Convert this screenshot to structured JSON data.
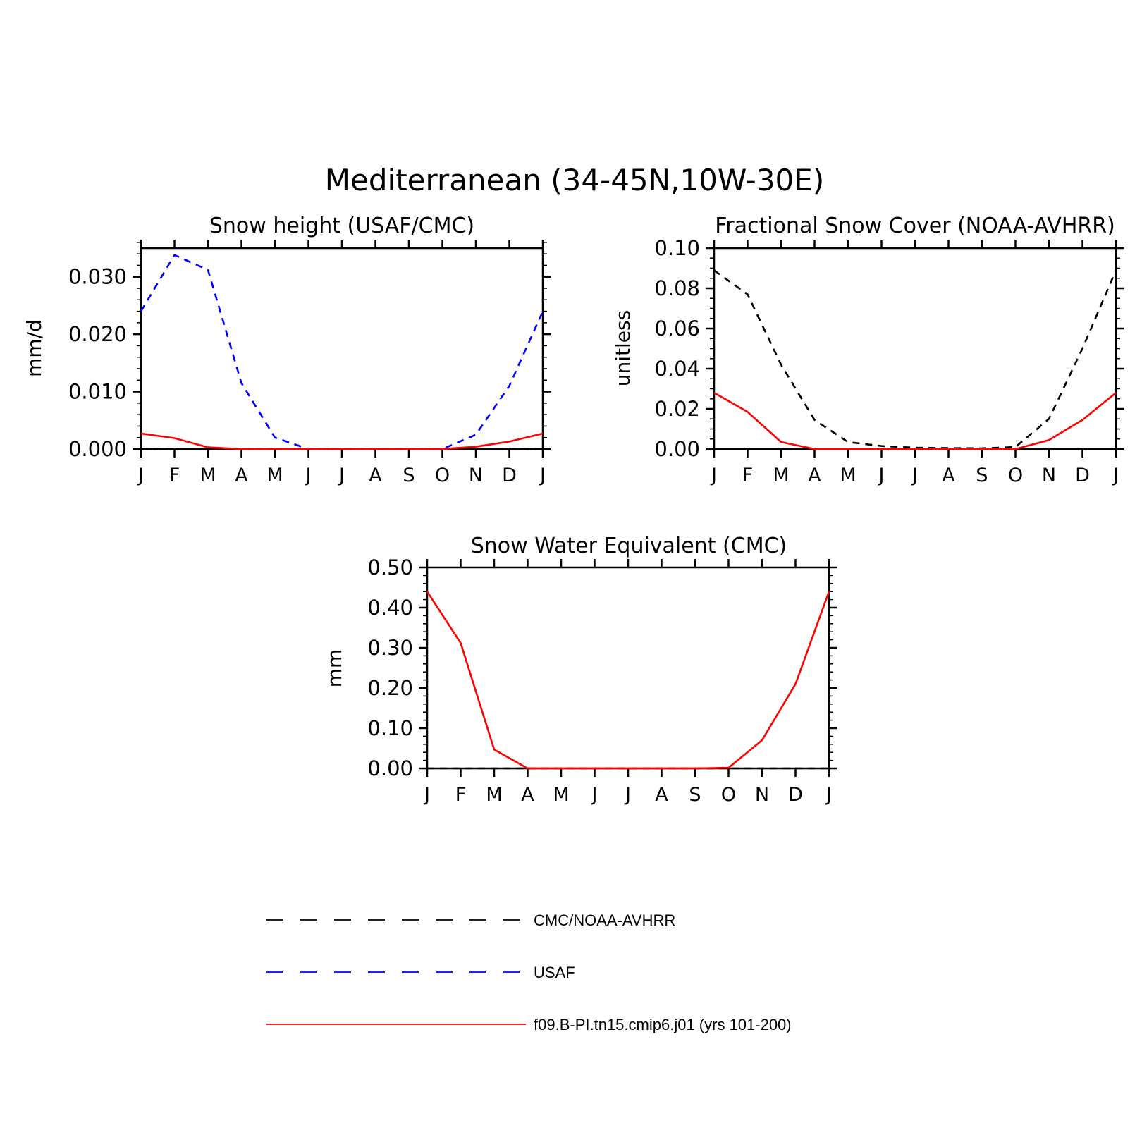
{
  "title": "Mediterranean (34-45N,10W-30E)",
  "month_labels": [
    "J",
    "F",
    "M",
    "A",
    "M",
    "J",
    "J",
    "A",
    "S",
    "O",
    "N",
    "D",
    "J"
  ],
  "colors": {
    "obs": "#000000",
    "usaf": "#0000ff",
    "model": "#ff0000"
  },
  "legend": [
    {
      "label": "CMC/NOAA-AVHRR",
      "color": "#000000",
      "style": "dashed"
    },
    {
      "label": "USAF",
      "color": "#0000ff",
      "style": "dashed"
    },
    {
      "label": "f09.B-PI.tn15.cmip6.j01 (yrs 101-200)",
      "color": "#ff0000",
      "style": "solid"
    }
  ],
  "chart_data": [
    {
      "type": "line",
      "title": "Snow height (USAF/CMC)",
      "ylabel": "mm/d",
      "xlabel": "",
      "x": [
        "J",
        "F",
        "M",
        "A",
        "M",
        "J",
        "J",
        "A",
        "S",
        "O",
        "N",
        "D",
        "J"
      ],
      "ylim": [
        0,
        0.035
      ],
      "yticks": [
        0.0,
        0.01,
        0.02,
        0.03
      ],
      "yticklabels": [
        "0.000",
        "0.010",
        "0.020",
        "0.030"
      ],
      "yminor": 0.002,
      "series": [
        {
          "name": "CMC/NOAA-AVHRR",
          "color": "#000000",
          "style": "dashed",
          "values": [
            0,
            0,
            0,
            0,
            0,
            0,
            0,
            0,
            0,
            0,
            0,
            0,
            0
          ]
        },
        {
          "name": "USAF",
          "color": "#0000ff",
          "style": "dashed",
          "values": [
            0.024,
            0.0338,
            0.0312,
            0.0115,
            0.002,
            0.0,
            0.0,
            0.0,
            0.0,
            0.0,
            0.0025,
            0.011,
            0.024
          ]
        },
        {
          "name": "f09.B-PI.tn15.cmip6.j01 (yrs 101-200)",
          "color": "#ff0000",
          "style": "solid",
          "values": [
            0.0027,
            0.0019,
            0.0003,
            0.0,
            0.0,
            0.0,
            0.0,
            0.0,
            0.0,
            0.0,
            0.0004,
            0.0013,
            0.0027
          ]
        }
      ]
    },
    {
      "type": "line",
      "title": "Fractional Snow Cover (NOAA-AVHRR)",
      "ylabel": "unitless",
      "xlabel": "",
      "x": [
        "J",
        "F",
        "M",
        "A",
        "M",
        "J",
        "J",
        "A",
        "S",
        "O",
        "N",
        "D",
        "J"
      ],
      "ylim": [
        0,
        0.1
      ],
      "yticks": [
        0.0,
        0.02,
        0.04,
        0.06,
        0.08,
        0.1
      ],
      "yticklabels": [
        "0.00",
        "0.02",
        "0.04",
        "0.06",
        "0.08",
        "0.10"
      ],
      "yminor": 0.005,
      "series": [
        {
          "name": "CMC/NOAA-AVHRR",
          "color": "#000000",
          "style": "dashed",
          "values": [
            0.089,
            0.077,
            0.042,
            0.0145,
            0.0035,
            0.0015,
            0.0007,
            0.0005,
            0.0004,
            0.001,
            0.015,
            0.05,
            0.089
          ]
        },
        {
          "name": "f09.B-PI.tn15.cmip6.j01 (yrs 101-200)",
          "color": "#ff0000",
          "style": "solid",
          "values": [
            0.028,
            0.0185,
            0.0035,
            0.0,
            0.0,
            0.0,
            0.0,
            0.0,
            0.0,
            0.0,
            0.0045,
            0.0145,
            0.028
          ]
        }
      ]
    },
    {
      "type": "line",
      "title": "Snow Water Equivalent (CMC)",
      "ylabel": "mm",
      "xlabel": "",
      "x": [
        "J",
        "F",
        "M",
        "A",
        "M",
        "J",
        "J",
        "A",
        "S",
        "O",
        "N",
        "D",
        "J"
      ],
      "ylim": [
        0,
        0.5
      ],
      "yticks": [
        0.0,
        0.1,
        0.2,
        0.3,
        0.4,
        0.5
      ],
      "yticklabels": [
        "0.00",
        "0.10",
        "0.20",
        "0.30",
        "0.40",
        "0.50"
      ],
      "yminor": 0.02,
      "series": [
        {
          "name": "CMC/NOAA-AVHRR",
          "color": "#000000",
          "style": "dashed",
          "values": [
            0,
            0,
            0,
            0,
            0,
            0,
            0,
            0,
            0,
            0,
            0,
            0,
            0
          ]
        },
        {
          "name": "f09.B-PI.tn15.cmip6.j01 (yrs 101-200)",
          "color": "#ff0000",
          "style": "solid",
          "values": [
            0.44,
            0.312,
            0.047,
            0.0,
            0.0,
            0.0,
            0.0,
            0.0,
            0.0,
            0.0015,
            0.07,
            0.21,
            0.44
          ]
        }
      ]
    }
  ]
}
